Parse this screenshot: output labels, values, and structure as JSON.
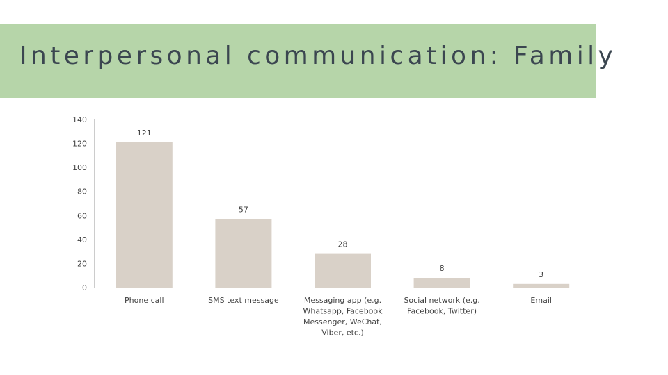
{
  "slide": {
    "title": "Interpersonal communication: Family",
    "colors": {
      "title_band": "#b6d5a9",
      "title_text": "#3b4650",
      "bar": "#d9d1c8",
      "axis": "#9a9a9a"
    }
  },
  "chart_data": {
    "type": "bar",
    "title": "",
    "xlabel": "",
    "ylabel": "",
    "ylim": [
      0,
      140
    ],
    "yticks": [
      0,
      20,
      40,
      60,
      80,
      100,
      120,
      140
    ],
    "grid": false,
    "categories": [
      [
        "Phone call"
      ],
      [
        "SMS text message"
      ],
      [
        "Messaging app (e.g.",
        "Whatsapp, Facebook",
        "Messenger, WeChat,",
        "Viber, etc.)"
      ],
      [
        "Social network (e.g.",
        "Facebook, Twitter)"
      ],
      [
        "Email"
      ]
    ],
    "values": [
      121,
      57,
      28,
      8,
      3
    ]
  }
}
